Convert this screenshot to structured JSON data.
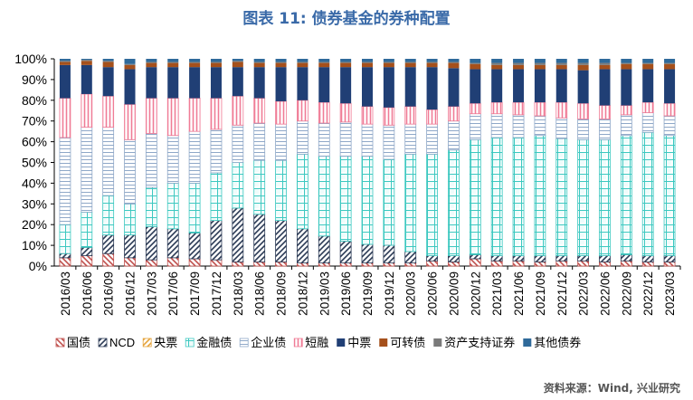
{
  "title": "图表 11: 债券基金的券种配置",
  "source": "资料来源：Wind, 兴业研究",
  "chart_data": {
    "type": "bar",
    "stacked": true,
    "percent": true,
    "ylim": [
      0,
      100
    ],
    "yticks": [
      "0%",
      "10%",
      "20%",
      "30%",
      "40%",
      "50%",
      "60%",
      "70%",
      "80%",
      "90%",
      "100%"
    ],
    "legend_position": "bottom",
    "categories": [
      "2016/03",
      "2016/06",
      "2016/09",
      "2016/12",
      "2017/03",
      "2017/06",
      "2017/09",
      "2017/12",
      "2018/03",
      "2018/06",
      "2018/09",
      "2018/12",
      "2019/03",
      "2019/06",
      "2019/09",
      "2019/12",
      "2020/03",
      "2020/06",
      "2020/09",
      "2020/12",
      "2021/03",
      "2021/06",
      "2021/09",
      "2021/12",
      "2022/03",
      "2022/06",
      "2022/09",
      "2022/12",
      "2023/03"
    ],
    "series": [
      {
        "name": "国债",
        "color": "#c0504d",
        "pattern": "diag-back",
        "values": [
          4,
          5,
          6,
          4,
          3,
          4,
          3.5,
          3,
          2,
          2,
          2,
          1.5,
          1.5,
          1.5,
          1.5,
          1.5,
          1.5,
          2.5,
          2,
          3.5,
          2.5,
          2.5,
          2,
          2.5,
          2.5,
          2,
          2.5,
          2,
          2
        ]
      },
      {
        "name": "NCD",
        "color": "#2b3a55",
        "pattern": "diag-fwd",
        "values": [
          2,
          4,
          9,
          11,
          16,
          14,
          12.5,
          19,
          26,
          23,
          20,
          16.5,
          13,
          10.5,
          9,
          8.5,
          5.5,
          2.5,
          3,
          2,
          2.5,
          2.5,
          3,
          2.5,
          2.5,
          3,
          3,
          3,
          3
        ]
      },
      {
        "name": "央票",
        "color": "#e5a33a",
        "pattern": "diag-fwd",
        "values": [
          0,
          0,
          0,
          0,
          0,
          0,
          0,
          0,
          0,
          0,
          0,
          0,
          0,
          0,
          0,
          0,
          0,
          0,
          0,
          0,
          0,
          0,
          0,
          0,
          0,
          0,
          0,
          0,
          0
        ]
      },
      {
        "name": "金融债",
        "color": "#3cc8c0",
        "pattern": "grid",
        "values": [
          14,
          17,
          19,
          15,
          19,
          22,
          24,
          23,
          22,
          26,
          29,
          36,
          38.5,
          41,
          42.5,
          41.5,
          47,
          49,
          51,
          55.5,
          57,
          57,
          58,
          56.5,
          56,
          56,
          57.5,
          59.5,
          58
        ]
      },
      {
        "name": "企业债",
        "color": "#8fa8c8",
        "pattern": "hlines",
        "values": [
          42,
          41,
          33,
          31,
          26,
          23,
          25,
          21,
          18,
          18,
          17.5,
          16,
          16,
          16.5,
          15.5,
          16.5,
          14.5,
          14.5,
          14,
          12.5,
          11.5,
          11,
          9.5,
          10,
          10,
          10,
          10,
          9.5,
          9.5
        ]
      },
      {
        "name": "短融",
        "color": "#f07c96",
        "pattern": "vlines",
        "values": [
          19,
          16,
          15,
          17,
          17,
          18,
          16,
          15,
          14,
          12,
          11,
          10,
          10,
          9,
          8.5,
          8.5,
          8.5,
          7,
          7,
          5,
          5.5,
          6,
          6.5,
          7.5,
          7.5,
          6.5,
          4.5,
          5,
          6
        ]
      },
      {
        "name": "中票",
        "color": "#203f75",
        "pattern": "solid",
        "values": [
          16,
          14,
          14,
          17,
          15,
          15,
          15,
          15,
          14,
          15,
          16.5,
          16,
          17,
          17.5,
          19,
          19.5,
          19,
          20.5,
          18.5,
          16.5,
          16,
          16,
          16,
          16,
          16,
          17.5,
          17.5,
          16,
          16.5
        ]
      },
      {
        "name": "可转债",
        "color": "#a5501b",
        "pattern": "solid",
        "values": [
          1.5,
          2,
          2.5,
          2,
          2,
          2,
          2,
          2,
          2.5,
          2,
          2,
          2,
          2,
          2,
          2,
          2,
          2,
          2,
          2.5,
          2.5,
          2,
          2,
          2,
          2,
          2.5,
          2,
          2.5,
          2.5,
          2.5
        ]
      },
      {
        "name": "资产支持证券",
        "color": "#7a7a7a",
        "pattern": "solid",
        "values": [
          0.5,
          0.5,
          0.5,
          0.5,
          0.5,
          0.5,
          0.5,
          0.5,
          0.5,
          0.5,
          0.5,
          0.5,
          0.5,
          0.5,
          0.5,
          0.5,
          0.5,
          0.5,
          0.5,
          0.5,
          1,
          1,
          1,
          1,
          1,
          1,
          0.5,
          0.5,
          0.5
        ]
      },
      {
        "name": "其他债券",
        "color": "#2f6a9a",
        "pattern": "solid",
        "values": [
          1,
          0.5,
          1,
          2.5,
          1.5,
          1.5,
          1.5,
          1.5,
          1,
          1.5,
          1.5,
          1.5,
          1.5,
          1.5,
          1.5,
          1.5,
          1.5,
          1.5,
          1.5,
          2,
          2,
          2,
          2,
          2,
          2,
          2,
          2,
          2,
          2
        ]
      }
    ]
  }
}
